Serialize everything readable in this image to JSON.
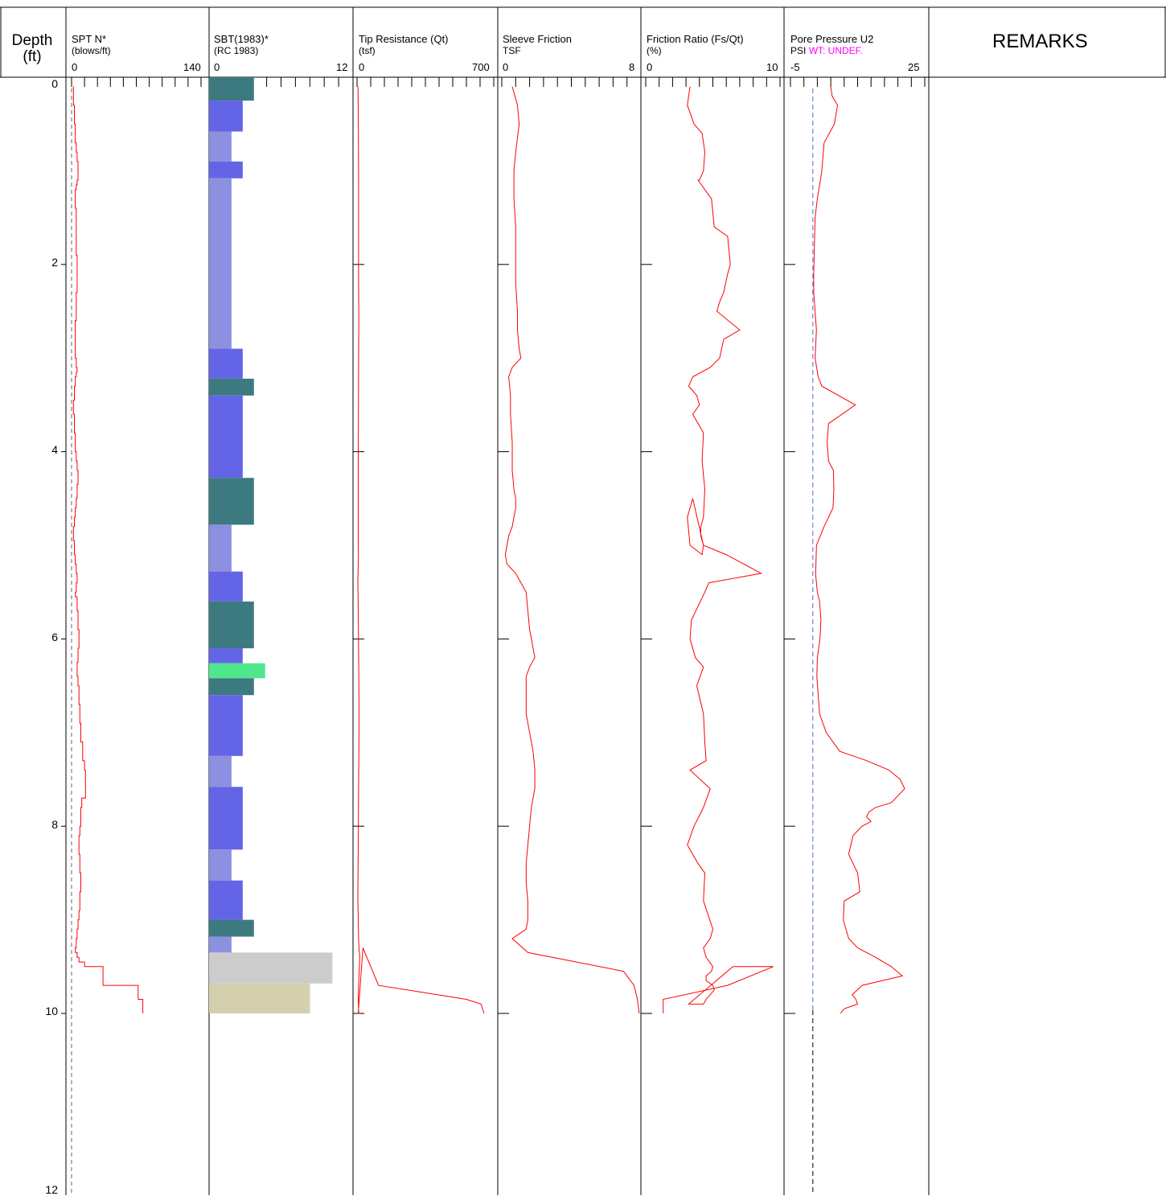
{
  "header": {
    "depth_title_1": "Depth",
    "depth_title_2": "(ft)",
    "remarks": "REMARKS"
  },
  "tracks": [
    {
      "key": "spt",
      "title": "SPT N*",
      "subtitle": "(blows/ft)",
      "min": 0,
      "max": 140,
      "min_label": "0",
      "max_label": "140"
    },
    {
      "key": "sbt",
      "title": "SBT(1983)*",
      "subtitle": "(RC 1983)",
      "min": 0,
      "max": 12,
      "min_label": "0",
      "max_label": "12"
    },
    {
      "key": "qt",
      "title": "Tip Resistance (Qt)",
      "subtitle": "(tsf)",
      "min": 0,
      "max": 700,
      "min_label": "0",
      "max_label": "700"
    },
    {
      "key": "fs",
      "title": "Sleeve Friction",
      "subtitle": "TSF",
      "min": 0,
      "max": 8,
      "min_label": "0",
      "max_label": "8"
    },
    {
      "key": "fr",
      "title": "Friction Ratio (Fs/Qt)",
      "subtitle": "(%)",
      "min": 0,
      "max": 10,
      "min_label": "0",
      "max_label": "10"
    },
    {
      "key": "u2",
      "title": "Pore Pressure U2",
      "subtitle": "PSI",
      "subtitle_extra": "WT: UNDEF.",
      "min": -5,
      "max": 25,
      "min_label": "-5",
      "max_label": "25"
    }
  ],
  "chart_data": {
    "type": "line",
    "title": "",
    "ylabel": "Depth (ft)",
    "ylim": [
      0,
      12
    ],
    "y_ticks": [
      0,
      2,
      4,
      6,
      8,
      10,
      12
    ],
    "line_color": "#ff0000",
    "series": [
      {
        "name": "SPT N*",
        "step": true,
        "x": [
          2,
          2,
          3,
          3,
          4,
          4,
          5,
          5,
          6,
          6,
          7,
          7,
          6,
          6,
          5,
          5,
          4,
          4,
          5,
          5,
          6,
          6,
          5,
          5,
          4,
          4,
          5,
          5,
          6,
          6,
          5,
          5,
          4,
          4,
          3,
          3,
          2,
          2,
          3,
          3,
          4,
          4,
          5,
          5,
          6,
          6,
          7,
          7,
          6,
          6,
          5,
          5,
          4,
          4,
          3,
          3,
          2,
          2,
          3,
          3,
          4,
          4,
          5,
          5,
          6,
          6,
          5,
          5,
          4,
          4,
          6,
          6,
          7,
          7,
          8,
          8,
          7,
          7,
          6,
          6,
          7,
          7,
          8,
          8,
          9,
          9,
          10,
          10,
          12,
          12,
          14,
          14,
          15,
          15,
          11,
          11,
          10,
          10,
          9,
          9,
          8,
          8,
          9,
          9,
          10,
          10,
          9,
          9,
          8,
          8,
          7,
          7,
          6,
          6,
          5,
          5,
          4,
          4,
          6,
          6,
          8,
          8,
          14,
          14,
          34,
          34,
          72,
          72,
          77,
          77
        ],
        "y": [
          0.1,
          0.3,
          0.3,
          0.5,
          0.5,
          0.7,
          0.7,
          0.8,
          0.8,
          0.9,
          0.9,
          1.1,
          1.1,
          1.15,
          1.15,
          1.2,
          1.2,
          1.4,
          1.4,
          1.9,
          1.9,
          2.3,
          2.3,
          2.6,
          2.6,
          3.0,
          3.0,
          3.1,
          3.1,
          3.15,
          3.15,
          3.2,
          3.2,
          3.3,
          3.3,
          3.45,
          3.45,
          3.6,
          3.6,
          3.8,
          3.8,
          4.0,
          4.0,
          4.1,
          4.1,
          4.2,
          4.2,
          4.35,
          4.35,
          4.5,
          4.5,
          4.6,
          4.6,
          4.7,
          4.7,
          4.8,
          4.8,
          4.95,
          4.95,
          5.1,
          5.1,
          5.2,
          5.2,
          5.3,
          5.3,
          5.4,
          5.4,
          5.5,
          5.5,
          5.55,
          5.55,
          5.7,
          5.7,
          5.9,
          5.9,
          6.1,
          6.1,
          6.25,
          6.25,
          6.4,
          6.4,
          6.5,
          6.5,
          6.7,
          6.7,
          6.9,
          6.9,
          7.1,
          7.1,
          7.3,
          7.3,
          7.4,
          7.4,
          7.7,
          7.7,
          7.8,
          7.8,
          8.0,
          8.0,
          8.1,
          8.1,
          8.3,
          8.3,
          8.5,
          8.5,
          8.7,
          8.7,
          8.9,
          8.9,
          9.0,
          9.0,
          9.1,
          9.1,
          9.2,
          9.2,
          9.3,
          9.3,
          9.35,
          9.35,
          9.4,
          9.4,
          9.45,
          9.45,
          9.5,
          9.5,
          9.7,
          9.7,
          9.85,
          9.85,
          10.0
        ]
      },
      {
        "name": "Tip Resistance (Qt)",
        "x": [
          5,
          7,
          8,
          8,
          8,
          9,
          8,
          7,
          6,
          6,
          6,
          7,
          6,
          5,
          4,
          5,
          6,
          7,
          8,
          9,
          10,
          10,
          9,
          8,
          7,
          6,
          5,
          4,
          6,
          8,
          10,
          12,
          14,
          12,
          10,
          8,
          7,
          7,
          6,
          7,
          8,
          9,
          10,
          10,
          9,
          8,
          8,
          9,
          9,
          8,
          6,
          30,
          110,
          560,
          635,
          650
        ],
        "y": [
          0.1,
          0.6,
          1.1,
          1.6,
          2.1,
          2.6,
          3.1,
          3.6,
          4.1,
          4.6,
          5.0,
          5.1,
          5.2,
          5.3,
          5.4,
          5.5,
          5.7,
          5.9,
          6.1,
          6.4,
          6.7,
          7.0,
          7.3,
          7.6,
          7.9,
          8.2,
          8.5,
          8.8,
          9.0,
          9.2,
          9.3,
          9.35,
          9.4,
          9.5,
          9.6,
          9.7,
          9.75,
          9.8,
          9.85,
          9.9,
          9.95,
          10.0,
          10.0,
          10.0,
          10.0,
          10.0,
          10.0,
          10.0,
          10.0,
          10.0,
          10.0,
          9.3,
          9.7,
          9.85,
          9.9,
          10.0
        ]
      },
      {
        "name": "Sleeve Friction",
        "x": [
          0.6,
          0.9,
          1.0,
          0.8,
          0.7,
          0.7,
          0.8,
          0.8,
          0.8,
          0.9,
          0.9,
          1.0,
          1.1,
          0.6,
          0.4,
          0.5,
          0.5,
          0.6,
          0.6,
          0.7,
          0.8,
          0.8,
          0.7,
          0.6,
          0.4,
          0.3,
          0.2,
          0.3,
          0.8,
          1.4,
          1.5,
          1.6,
          1.7,
          1.9,
          1.6,
          1.4,
          1.4,
          1.4,
          1.6,
          1.8,
          1.9,
          1.9,
          1.7,
          1.6,
          1.5,
          1.4,
          1.4,
          1.5,
          1.5,
          1.4,
          0.6,
          1.5,
          7.0,
          7.6,
          7.8,
          7.9
        ],
        "y": [
          0.1,
          0.3,
          0.5,
          0.8,
          1.0,
          1.3,
          1.6,
          1.9,
          2.2,
          2.5,
          2.7,
          2.9,
          3.0,
          3.1,
          3.2,
          3.4,
          3.6,
          3.9,
          4.2,
          4.4,
          4.5,
          4.6,
          4.7,
          4.8,
          4.9,
          5.0,
          5.1,
          5.2,
          5.3,
          5.5,
          5.7,
          5.9,
          6.0,
          6.2,
          6.3,
          6.4,
          6.6,
          6.8,
          7.0,
          7.2,
          7.4,
          7.6,
          7.8,
          8.0,
          8.2,
          8.4,
          8.6,
          8.8,
          9.0,
          9.1,
          9.2,
          9.35,
          9.55,
          9.7,
          9.85,
          10.0
        ]
      },
      {
        "name": "Friction Ratio (Fs/Qt)",
        "x": [
          3.3,
          3.1,
          3.6,
          4.2,
          4.4,
          4.3,
          4.0,
          3.9,
          4.9,
          5.1,
          6.1,
          6.3,
          6.1,
          5.8,
          5.5,
          5.3,
          7.0,
          5.8,
          5.5,
          4.8,
          3.5,
          3.2,
          3.8,
          4.0,
          3.5,
          4.3,
          4.2,
          4.4,
          4.3,
          4.1,
          4.1,
          4.3,
          4.2,
          3.3,
          3.1,
          3.5,
          4.3,
          6.0,
          8.6,
          4.7,
          4.4,
          3.4,
          3.3,
          3.7,
          4.3,
          3.8,
          4.3,
          4.4,
          4.5,
          3.3,
          4.8,
          4.3,
          3.6,
          3.1,
          3.9,
          4.4,
          4.3,
          5.0,
          4.8,
          4.3,
          4.5,
          5.0,
          4.9,
          4.5,
          4.5,
          5.0,
          5.1,
          4.8,
          4.5,
          4.3,
          3.2,
          6.5,
          9.5,
          6.1,
          1.3,
          1.3,
          1.3
        ],
        "y": [
          0.1,
          0.3,
          0.5,
          0.6,
          0.8,
          1.0,
          1.1,
          1.1,
          1.3,
          1.6,
          1.7,
          2.0,
          2.1,
          2.3,
          2.4,
          2.5,
          2.7,
          2.8,
          3.0,
          3.1,
          3.2,
          3.3,
          3.4,
          3.5,
          3.6,
          3.8,
          4.1,
          4.4,
          4.7,
          4.8,
          4.9,
          5.0,
          5.1,
          5.0,
          4.7,
          4.5,
          5.0,
          5.1,
          5.3,
          5.4,
          5.5,
          5.8,
          6.0,
          6.2,
          6.3,
          6.5,
          6.8,
          7.1,
          7.3,
          7.4,
          7.6,
          7.8,
          8.0,
          8.2,
          8.4,
          8.5,
          8.8,
          9.1,
          9.2,
          9.3,
          9.4,
          9.5,
          9.55,
          9.6,
          9.65,
          9.7,
          9.75,
          9.8,
          9.85,
          9.9,
          9.9,
          9.5,
          9.5,
          9.7,
          9.85,
          9.95,
          10.0
        ]
      },
      {
        "name": "Pore Pressure U2",
        "x": [
          4.0,
          4.3,
          5.5,
          4.8,
          2.5,
          2.0,
          1.0,
          0.5,
          0.3,
          0.2,
          0.2,
          0.5,
          0.8,
          0.5,
          1.2,
          2.0,
          9.5,
          3.5,
          3.2,
          3.5,
          4.6,
          4.7,
          4.5,
          2.5,
          0.8,
          0.7,
          0.6,
          1.0,
          1.5,
          1.8,
          1.6,
          1.0,
          0.9,
          1.2,
          1.5,
          3.0,
          6.0,
          12.0,
          17.0,
          19.5,
          20.5,
          17.5,
          14.0,
          12.5,
          12.0,
          13.0,
          11.0,
          9.0,
          8.0,
          10.0,
          10.5,
          7.0,
          6.8,
          8.0,
          10.0,
          14.0,
          17.5,
          20.0,
          11.0,
          8.8,
          9.6,
          10.0,
          7.0,
          6.2,
          6.2
        ],
        "y": [
          0.1,
          0.2,
          0.3,
          0.5,
          0.7,
          1.0,
          1.3,
          1.5,
          1.9,
          2.1,
          2.3,
          2.5,
          2.7,
          3.0,
          3.2,
          3.3,
          3.5,
          3.7,
          3.9,
          4.1,
          4.2,
          4.4,
          4.6,
          4.8,
          5.0,
          5.2,
          5.3,
          5.5,
          5.6,
          5.8,
          6.0,
          6.2,
          6.4,
          6.6,
          6.8,
          7.0,
          7.2,
          7.3,
          7.4,
          7.5,
          7.6,
          7.75,
          7.8,
          7.85,
          7.9,
          7.95,
          8.0,
          8.1,
          8.3,
          8.5,
          8.7,
          8.8,
          9.0,
          9.2,
          9.3,
          9.4,
          9.5,
          9.6,
          9.7,
          9.8,
          9.85,
          9.9,
          9.95,
          10.0,
          10.0
        ]
      }
    ],
    "water_table_label": "WT: UNDEF.",
    "u2_reference_line_x": 0,
    "sbt_layers": [
      {
        "top": 0.0,
        "bottom": 0.25,
        "value": 4.0,
        "color": "#3d7a80"
      },
      {
        "top": 0.25,
        "bottom": 0.58,
        "value": 3.0,
        "color": "#6464e6"
      },
      {
        "top": 0.58,
        "bottom": 0.9,
        "value": 2.0,
        "color": "#8b91e0"
      },
      {
        "top": 0.9,
        "bottom": 1.08,
        "value": 3.0,
        "color": "#6464e6"
      },
      {
        "top": 1.08,
        "bottom": 2.9,
        "value": 2.0,
        "color": "#8b91e0"
      },
      {
        "top": 2.9,
        "bottom": 3.22,
        "value": 3.0,
        "color": "#6464e6"
      },
      {
        "top": 3.22,
        "bottom": 3.4,
        "value": 4.0,
        "color": "#3d7a80"
      },
      {
        "top": 3.4,
        "bottom": 4.28,
        "value": 3.0,
        "color": "#6464e6"
      },
      {
        "top": 4.28,
        "bottom": 4.78,
        "value": 4.0,
        "color": "#3d7a80"
      },
      {
        "top": 4.78,
        "bottom": 5.28,
        "value": 2.0,
        "color": "#8b91e0"
      },
      {
        "top": 5.28,
        "bottom": 5.6,
        "value": 3.0,
        "color": "#6464e6"
      },
      {
        "top": 5.6,
        "bottom": 6.1,
        "value": 4.0,
        "color": "#3d7a80"
      },
      {
        "top": 6.1,
        "bottom": 6.26,
        "value": 3.0,
        "color": "#6464e6"
      },
      {
        "top": 6.26,
        "bottom": 6.42,
        "value": 5.0,
        "color": "#50e68c"
      },
      {
        "top": 6.42,
        "bottom": 6.6,
        "value": 4.0,
        "color": "#3d7a80"
      },
      {
        "top": 6.6,
        "bottom": 7.25,
        "value": 3.0,
        "color": "#6464e6"
      },
      {
        "top": 7.25,
        "bottom": 7.58,
        "value": 2.0,
        "color": "#8b91e0"
      },
      {
        "top": 7.58,
        "bottom": 8.25,
        "value": 3.0,
        "color": "#6464e6"
      },
      {
        "top": 8.25,
        "bottom": 8.58,
        "value": 2.0,
        "color": "#8b91e0"
      },
      {
        "top": 8.58,
        "bottom": 9.0,
        "value": 3.0,
        "color": "#6464e6"
      },
      {
        "top": 9.0,
        "bottom": 9.18,
        "value": 4.0,
        "color": "#3d7a80"
      },
      {
        "top": 9.18,
        "bottom": 9.35,
        "value": 2.0,
        "color": "#8b91e0"
      },
      {
        "top": 9.35,
        "bottom": 9.68,
        "value": 11.0,
        "color": "#cccccc"
      },
      {
        "top": 9.68,
        "bottom": 10.0,
        "value": 9.0,
        "color": "#d4cfad"
      }
    ]
  }
}
